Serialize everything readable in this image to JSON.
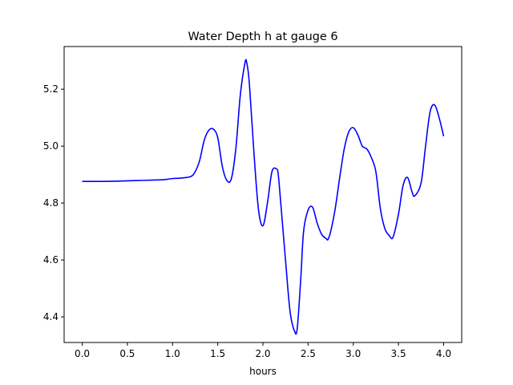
{
  "chart_data": {
    "type": "line",
    "title": "Water Depth h at gauge 6",
    "xlabel": "hours",
    "ylabel": "",
    "xlim": [
      -0.2,
      4.2
    ],
    "ylim": [
      4.31,
      5.35
    ],
    "xticks": [
      0.0,
      0.5,
      1.0,
      1.5,
      2.0,
      2.5,
      3.0,
      3.5,
      4.0
    ],
    "xtick_labels": [
      "0.0",
      "0.5",
      "1.0",
      "1.5",
      "2.0",
      "2.5",
      "3.0",
      "3.5",
      "4.0"
    ],
    "yticks": [
      4.4,
      4.6,
      4.8,
      5.0,
      5.2
    ],
    "ytick_labels": [
      "4.4",
      "4.6",
      "4.8",
      "5.0",
      "5.2"
    ],
    "grid": false,
    "series": [
      {
        "color": "#0000ff",
        "x": [
          0.0,
          0.2,
          0.4,
          0.6,
          0.8,
          0.9,
          1.0,
          1.1,
          1.2,
          1.25,
          1.3,
          1.35,
          1.4,
          1.45,
          1.5,
          1.55,
          1.6,
          1.65,
          1.7,
          1.75,
          1.8,
          1.82,
          1.85,
          1.9,
          1.95,
          2.0,
          2.05,
          2.1,
          2.15,
          2.17,
          2.2,
          2.25,
          2.3,
          2.35,
          2.38,
          2.42,
          2.45,
          2.5,
          2.55,
          2.6,
          2.65,
          2.7,
          2.72,
          2.75,
          2.8,
          2.85,
          2.9,
          2.95,
          3.0,
          3.05,
          3.1,
          3.15,
          3.2,
          3.25,
          3.3,
          3.35,
          3.4,
          3.44,
          3.5,
          3.55,
          3.6,
          3.65,
          3.68,
          3.75,
          3.8,
          3.85,
          3.9,
          3.95,
          4.0
        ],
        "y": [
          4.876,
          4.876,
          4.877,
          4.879,
          4.881,
          4.882,
          4.886,
          4.888,
          4.893,
          4.91,
          4.95,
          5.02,
          5.055,
          5.06,
          5.03,
          4.93,
          4.88,
          4.885,
          4.99,
          5.18,
          5.29,
          5.295,
          5.22,
          4.98,
          4.78,
          4.72,
          4.8,
          4.91,
          4.92,
          4.9,
          4.79,
          4.6,
          4.42,
          4.35,
          4.36,
          4.54,
          4.7,
          4.775,
          4.785,
          4.73,
          4.69,
          4.675,
          4.672,
          4.7,
          4.78,
          4.89,
          4.99,
          5.05,
          5.065,
          5.04,
          5.0,
          4.99,
          4.96,
          4.91,
          4.78,
          4.71,
          4.685,
          4.68,
          4.76,
          4.86,
          4.89,
          4.84,
          4.825,
          4.87,
          5.0,
          5.12,
          5.145,
          5.1,
          5.035
        ]
      }
    ]
  }
}
